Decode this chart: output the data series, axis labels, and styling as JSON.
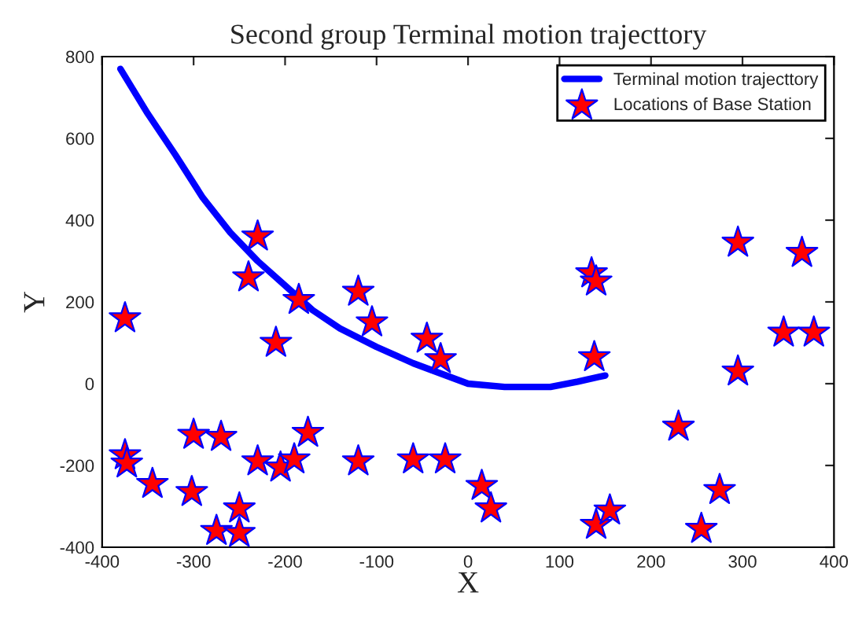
{
  "chart_data": {
    "type": "line",
    "title": "Second group Terminal motion trajecttory",
    "xlabel": "X",
    "ylabel": "Y",
    "xlim": [
      -400,
      400
    ],
    "ylim": [
      -400,
      800
    ],
    "xticks": [
      -400,
      -300,
      -200,
      -100,
      0,
      100,
      200,
      300,
      400
    ],
    "yticks": [
      -400,
      -200,
      0,
      200,
      400,
      600,
      800
    ],
    "grid": false,
    "legend": "top right",
    "series": [
      {
        "name": "Terminal motion trajecttory",
        "color": "#0000ff",
        "marker": "none",
        "line_style": "solid",
        "x": [
          -380,
          -350,
          -320,
          -290,
          -260,
          -230,
          -200,
          -170,
          -140,
          -100,
          -60,
          -30,
          0,
          40,
          90,
          120,
          150
        ],
        "values": [
          770,
          660,
          560,
          455,
          370,
          300,
          240,
          180,
          135,
          90,
          50,
          25,
          0,
          -8,
          -8,
          5,
          20
        ]
      },
      {
        "name": "Locations of Base Station",
        "type": "scatter",
        "color": "#ff0000",
        "marker": "star",
        "x": [
          -375,
          -375,
          -373,
          -345,
          -300,
          -302,
          -270,
          -275,
          -250,
          -250,
          -230,
          -240,
          -230,
          -210,
          -205,
          -185,
          -190,
          -175,
          -120,
          -120,
          -105,
          -60,
          -45,
          -30,
          -25,
          15,
          25,
          140,
          155,
          135,
          140,
          138,
          230,
          255,
          275,
          295,
          295,
          345,
          365,
          378
        ],
        "values": [
          160,
          -175,
          -195,
          -245,
          -125,
          -265,
          -130,
          -360,
          -305,
          -365,
          360,
          260,
          -190,
          100,
          -205,
          205,
          -185,
          -120,
          225,
          -190,
          150,
          -185,
          110,
          60,
          -185,
          -250,
          -305,
          -345,
          -310,
          270,
          250,
          65,
          -105,
          -355,
          -260,
          30,
          345,
          125,
          320,
          125
        ]
      }
    ]
  }
}
